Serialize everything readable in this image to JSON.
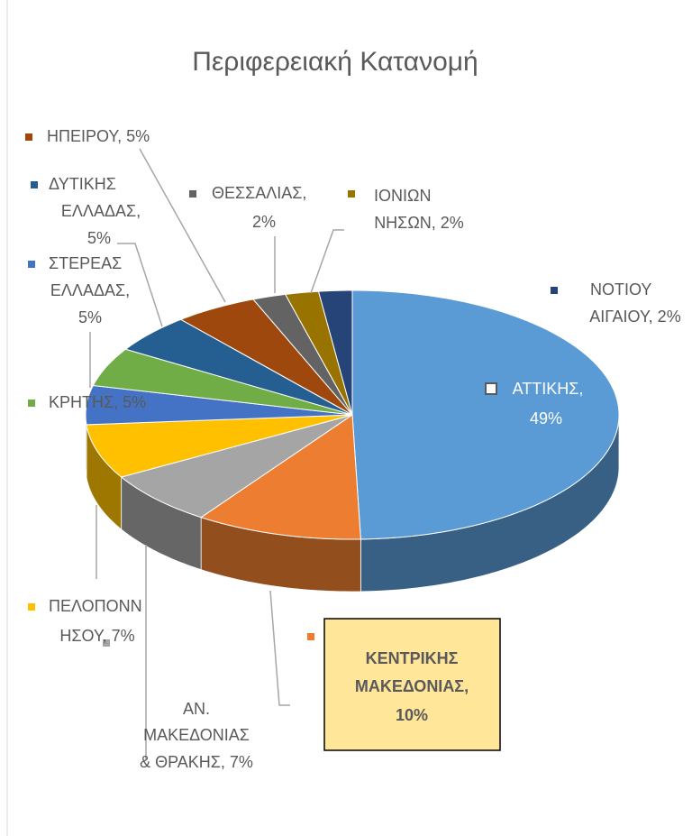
{
  "chart_data": {
    "type": "pie3d",
    "title": "Περιφερειακή Κατανομή",
    "values": [
      49,
      10,
      7,
      7,
      5,
      5,
      5,
      5,
      2,
      2,
      2
    ],
    "value_labels": [
      [
        "ΑΤΤΙΚΗΣ,",
        "49%"
      ],
      [
        "ΚΕΝΤΡΙΚΗΣ",
        "ΜΑΚΕΔΟΝΙΑΣ,",
        "10%"
      ],
      [
        "ΑΝ.",
        "ΜΑΚΕΔΟΝΙΑΣ",
        "& ΘΡΑΚΗΣ, 7%"
      ],
      [
        "ΠΕΛΟΠΟΝΝ",
        "ΗΣΟΥ, 7%"
      ],
      [
        "ΣΤΕΡΕΑΣ",
        "ΕΛΛΑΔΑΣ,",
        "5%"
      ],
      [
        "ΚΡΗΤΗΣ, 5%"
      ],
      [
        "ΔΥΤΙΚΗΣ",
        "ΕΛΛΑΔΑΣ,",
        "5%"
      ],
      [
        "ΗΠΕΙΡΟΥ, 5%"
      ],
      [
        "ΘΕΣΣΑΛΙΑΣ,",
        "2%"
      ],
      [
        "ΙΟΝΙΩΝ",
        "ΝΗΣΩΝ, 2%"
      ],
      [
        "ΝΟΤΙΟΥ",
        "ΑΙΓΑΙΟΥ, 2%"
      ]
    ],
    "colors": [
      "#5b9bd5",
      "#ed7d31",
      "#a5a5a5",
      "#ffc000",
      "#4472c4",
      "#70ad47",
      "#255e91",
      "#9e480e",
      "#636363",
      "#997300",
      "#264478"
    ]
  }
}
